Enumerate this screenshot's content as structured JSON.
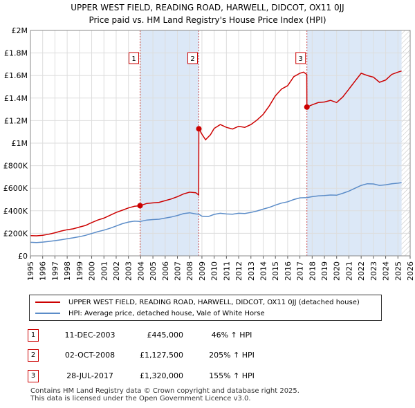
{
  "title_line1": "UPPER WEST FIELD, READING ROAD, HARWELL, DIDCOT, OX11 0JJ",
  "title_line2": "Price paid vs. HM Land Registry's House Price Index (HPI)",
  "colors": {
    "property": "#cc0000",
    "hpi": "#5b8cc8",
    "shade": "#dce8f7",
    "grid": "#dddddd"
  },
  "chart_data": {
    "type": "line",
    "ylim": [
      0,
      2000000
    ],
    "xlim": [
      1995,
      2026
    ],
    "y_ticks": [
      {
        "value": 0,
        "label": "£0"
      },
      {
        "value": 200000,
        "label": "£200K"
      },
      {
        "value": 400000,
        "label": "£400K"
      },
      {
        "value": 600000,
        "label": "£600K"
      },
      {
        "value": 800000,
        "label": "£800K"
      },
      {
        "value": 1000000,
        "label": "£1M"
      },
      {
        "value": 1200000,
        "label": "£1.2M"
      },
      {
        "value": 1400000,
        "label": "£1.4M"
      },
      {
        "value": 1600000,
        "label": "£1.6M"
      },
      {
        "value": 1800000,
        "label": "£1.8M"
      },
      {
        "value": 2000000,
        "label": "£2M"
      }
    ],
    "x_ticks": [
      "1995",
      "1996",
      "1997",
      "1998",
      "1999",
      "2000",
      "2001",
      "2002",
      "2003",
      "2004",
      "2005",
      "2006",
      "2007",
      "2008",
      "2009",
      "2010",
      "2011",
      "2012",
      "2013",
      "2014",
      "2015",
      "2016",
      "2017",
      "2018",
      "2019",
      "2020",
      "2021",
      "2022",
      "2023",
      "2024",
      "2025",
      "2026"
    ],
    "shaded_regions": [
      [
        2003.95,
        2008.75
      ],
      [
        2017.57,
        2025.3
      ]
    ],
    "series": [
      {
        "name": "UPPER WEST FIELD, READING ROAD, HARWELL, DIDCOT, OX11 0JJ (detached house)",
        "color": "#cc0000",
        "points": [
          [
            1995,
            180000
          ],
          [
            1995.5,
            178000
          ],
          [
            1996,
            182000
          ],
          [
            1996.5,
            192000
          ],
          [
            1997,
            205000
          ],
          [
            1997.5,
            220000
          ],
          [
            1998,
            232000
          ],
          [
            1998.5,
            240000
          ],
          [
            1999,
            255000
          ],
          [
            1999.5,
            270000
          ],
          [
            2000,
            295000
          ],
          [
            2000.5,
            318000
          ],
          [
            2001,
            335000
          ],
          [
            2001.5,
            360000
          ],
          [
            2002,
            385000
          ],
          [
            2002.5,
            405000
          ],
          [
            2003,
            425000
          ],
          [
            2003.5,
            440000
          ],
          [
            2003.95,
            445000
          ],
          [
            2004.5,
            465000
          ],
          [
            2005,
            470000
          ],
          [
            2005.5,
            475000
          ],
          [
            2006,
            490000
          ],
          [
            2006.5,
            505000
          ],
          [
            2007,
            525000
          ],
          [
            2007.5,
            550000
          ],
          [
            2008,
            565000
          ],
          [
            2008.5,
            560000
          ],
          [
            2008.74,
            540000
          ],
          [
            2008.75,
            1127500
          ],
          [
            2009,
            1080000
          ],
          [
            2009.3,
            1030000
          ],
          [
            2009.7,
            1075000
          ],
          [
            2010,
            1130000
          ],
          [
            2010.5,
            1165000
          ],
          [
            2011,
            1140000
          ],
          [
            2011.5,
            1125000
          ],
          [
            2012,
            1150000
          ],
          [
            2012.5,
            1140000
          ],
          [
            2013,
            1165000
          ],
          [
            2013.5,
            1205000
          ],
          [
            2014,
            1255000
          ],
          [
            2014.5,
            1330000
          ],
          [
            2015,
            1420000
          ],
          [
            2015.5,
            1480000
          ],
          [
            2016,
            1510000
          ],
          [
            2016.5,
            1590000
          ],
          [
            2017,
            1620000
          ],
          [
            2017.3,
            1630000
          ],
          [
            2017.56,
            1610000
          ],
          [
            2017.57,
            1320000
          ],
          [
            2018,
            1340000
          ],
          [
            2018.5,
            1360000
          ],
          [
            2019,
            1365000
          ],
          [
            2019.5,
            1380000
          ],
          [
            2020,
            1360000
          ],
          [
            2020.5,
            1410000
          ],
          [
            2021,
            1480000
          ],
          [
            2021.5,
            1550000
          ],
          [
            2022,
            1620000
          ],
          [
            2022.5,
            1600000
          ],
          [
            2023,
            1585000
          ],
          [
            2023.5,
            1540000
          ],
          [
            2024,
            1560000
          ],
          [
            2024.5,
            1610000
          ],
          [
            2025,
            1630000
          ],
          [
            2025.3,
            1640000
          ]
        ]
      },
      {
        "name": "HPI: Average price, detached house, Vale of White Horse",
        "color": "#5b8cc8",
        "points": [
          [
            1995,
            120000
          ],
          [
            1995.5,
            118000
          ],
          [
            1996,
            122000
          ],
          [
            1996.5,
            128000
          ],
          [
            1997,
            135000
          ],
          [
            1997.5,
            143000
          ],
          [
            1998,
            152000
          ],
          [
            1998.5,
            160000
          ],
          [
            1999,
            170000
          ],
          [
            1999.5,
            182000
          ],
          [
            2000,
            198000
          ],
          [
            2000.5,
            215000
          ],
          [
            2001,
            228000
          ],
          [
            2001.5,
            245000
          ],
          [
            2002,
            265000
          ],
          [
            2002.5,
            285000
          ],
          [
            2003,
            300000
          ],
          [
            2003.5,
            308000
          ],
          [
            2003.95,
            305000
          ],
          [
            2004.5,
            318000
          ],
          [
            2005,
            322000
          ],
          [
            2005.5,
            325000
          ],
          [
            2006,
            335000
          ],
          [
            2006.5,
            345000
          ],
          [
            2007,
            358000
          ],
          [
            2007.5,
            375000
          ],
          [
            2008,
            382000
          ],
          [
            2008.5,
            372000
          ],
          [
            2008.75,
            370000
          ],
          [
            2009,
            352000
          ],
          [
            2009.5,
            348000
          ],
          [
            2010,
            368000
          ],
          [
            2010.5,
            378000
          ],
          [
            2011,
            372000
          ],
          [
            2011.5,
            370000
          ],
          [
            2012,
            378000
          ],
          [
            2012.5,
            376000
          ],
          [
            2013,
            385000
          ],
          [
            2013.5,
            398000
          ],
          [
            2014,
            415000
          ],
          [
            2014.5,
            430000
          ],
          [
            2015,
            450000
          ],
          [
            2015.5,
            468000
          ],
          [
            2016,
            480000
          ],
          [
            2016.5,
            500000
          ],
          [
            2017,
            515000
          ],
          [
            2017.57,
            517000
          ],
          [
            2018,
            525000
          ],
          [
            2018.5,
            532000
          ],
          [
            2019,
            535000
          ],
          [
            2019.5,
            540000
          ],
          [
            2020,
            538000
          ],
          [
            2020.5,
            555000
          ],
          [
            2021,
            575000
          ],
          [
            2021.5,
            600000
          ],
          [
            2022,
            625000
          ],
          [
            2022.5,
            640000
          ],
          [
            2023,
            638000
          ],
          [
            2023.5,
            625000
          ],
          [
            2024,
            630000
          ],
          [
            2024.5,
            640000
          ],
          [
            2025,
            645000
          ],
          [
            2025.3,
            650000
          ]
        ]
      }
    ],
    "markers": [
      {
        "label": "1",
        "x": 2003.95,
        "y": 445000
      },
      {
        "label": "2",
        "x": 2008.75,
        "y": 1127500
      },
      {
        "label": "3",
        "x": 2017.57,
        "y": 1320000
      }
    ]
  },
  "legend": {
    "property_label": "UPPER WEST FIELD, READING ROAD, HARWELL, DIDCOT, OX11 0JJ (detached house)",
    "hpi_label": "HPI: Average price, detached house, Vale of White Horse"
  },
  "transactions": [
    {
      "num": "1",
      "date": "11-DEC-2003",
      "price": "£445,000",
      "hpi": "46% ↑ HPI"
    },
    {
      "num": "2",
      "date": "02-OCT-2008",
      "price": "£1,127,500",
      "hpi": "205% ↑ HPI"
    },
    {
      "num": "3",
      "date": "28-JUL-2017",
      "price": "£1,320,000",
      "hpi": "155% ↑ HPI"
    }
  ],
  "footer_line1": "Contains HM Land Registry data © Crown copyright and database right 2025.",
  "footer_line2": "This data is licensed under the Open Government Licence v3.0."
}
